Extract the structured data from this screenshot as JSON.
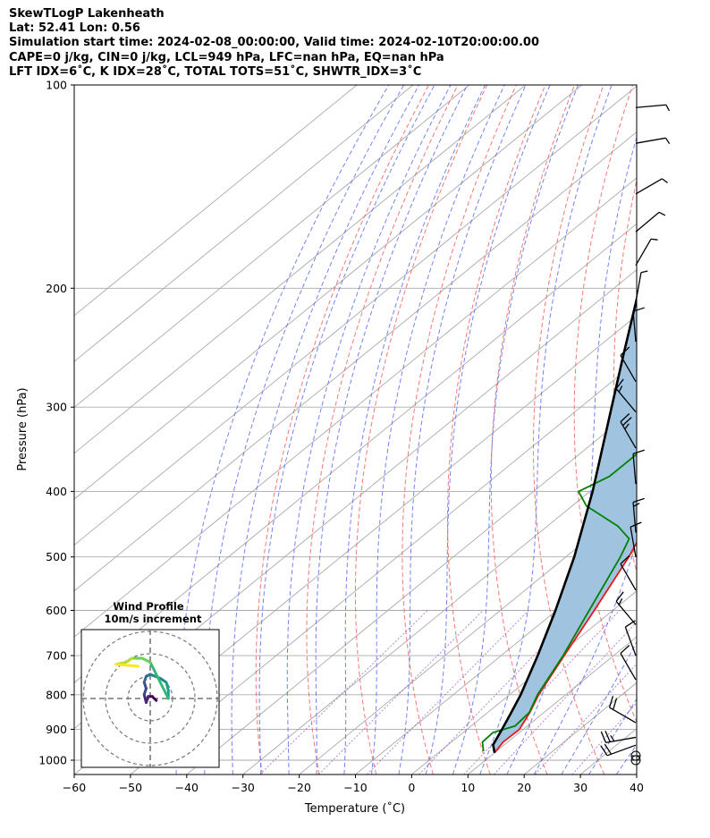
{
  "header": {
    "line1": "SkewTLogP Lakenheath",
    "line2": "Lat: 52.41   Lon: 0.56",
    "line3": "Simulation start time: 2024-02-08_00:00:00, Valid time: 2024-02-10T20:00:00.00",
    "line4": "CAPE=0 j/kg, CIN=0 j/kg, LCL=949 hPa, LFC=nan hPa, EQ=nan hPa",
    "line5": "LFT IDX=6˚C, K IDX=28˚C, TOTAL TOTS=51˚C, SHWTR_IDX=3˚C"
  },
  "hodograph": {
    "title": "Wind Profile",
    "subtitle": "10m/s increment"
  },
  "colors": {
    "temperature": "#e41a1c",
    "dewpoint": "#008000",
    "parcel": "#000000",
    "fill": "#a0c4e0",
    "dry_adiabat": "#f06060",
    "moist_adiabat": "#5a6ef0",
    "mixing_ratio": "#9040c0",
    "isotherm": "#aaaaaa"
  },
  "chart_data": {
    "type": "line",
    "title": "",
    "xlabel": "Temperature (˚C)",
    "ylabel": "Pressure (hPa)",
    "xlim": [
      -60,
      40
    ],
    "ylim": [
      1050,
      100
    ],
    "y_scale": "log",
    "grid": true,
    "x_ticks": [
      -60,
      -50,
      -40,
      -30,
      -20,
      -10,
      0,
      10,
      20,
      30,
      40
    ],
    "y_ticks": [
      100,
      200,
      300,
      400,
      500,
      600,
      700,
      800,
      900,
      1000
    ],
    "series": [
      {
        "key": "temperature",
        "pressure": [
          975,
          940,
          900,
          850,
          800,
          700,
          600,
          500,
          450,
          400,
          350,
          300,
          290,
          250,
          230,
          200,
          180,
          150,
          130,
          110,
          100
        ],
        "values": [
          10,
          9.2,
          9.3,
          7.5,
          5.2,
          1.2,
          -3.3,
          -8.8,
          -12.5,
          -16.2,
          -20.7,
          -28.5,
          -29.0,
          -27.6,
          -26.9,
          -27.5,
          -28.5,
          -31.0,
          -34.0,
          -38.5,
          -42.0
        ]
      },
      {
        "key": "dewpoint",
        "pressure": [
          970,
          940,
          910,
          890,
          850,
          800,
          700,
          600,
          500,
          470,
          450,
          420,
          400,
          380,
          350,
          330,
          300,
          270,
          250,
          230,
          210,
          200,
          180,
          150,
          130,
          110,
          100
        ],
        "values": [
          7.7,
          5.5,
          5.3,
          7.8,
          7.4,
          5.0,
          1.0,
          -4.2,
          -10.3,
          -12.7,
          -17.5,
          -27.5,
          -32.0,
          -29.8,
          -29.8,
          -31.0,
          -32.6,
          -33.2,
          -34.7,
          -35.0,
          -37.5,
          -38.0,
          -40.0,
          -43.0,
          -47.0,
          -50.5,
          -52.5
        ]
      },
      {
        "key": "parcel",
        "pressure": [
          975,
          949,
          900,
          850,
          800,
          700,
          600,
          500,
          400,
          300,
          250,
          200,
          150,
          100
        ],
        "values": [
          10,
          8.0,
          6.2,
          4.2,
          2.0,
          -3.5,
          -10.2,
          -18.5,
          -29.5,
          -44.5,
          -54.0,
          -65.5,
          -80.0,
          -97.0
        ]
      }
    ],
    "wind_barbs": [
      {
        "pressure": 1000,
        "speed_kt": 0
      },
      {
        "pressure": 985,
        "speed_kt": 0
      },
      {
        "pressure": 950,
        "speed_kt": 20,
        "dir": 250
      },
      {
        "pressure": 925,
        "speed_kt": 25,
        "dir": 260
      },
      {
        "pressure": 880,
        "speed_kt": 20,
        "dir": 300
      },
      {
        "pressure": 760,
        "speed_kt": 10,
        "dir": 330
      },
      {
        "pressure": 700,
        "speed_kt": 10,
        "dir": 340
      },
      {
        "pressure": 630,
        "speed_kt": 15,
        "dir": 320
      },
      {
        "pressure": 560,
        "speed_kt": 10,
        "dir": 330
      },
      {
        "pressure": 500,
        "speed_kt": 10,
        "dir": 350
      },
      {
        "pressure": 460,
        "speed_kt": 15,
        "dir": 355
      },
      {
        "pressure": 390,
        "speed_kt": 10,
        "dir": 355
      },
      {
        "pressure": 345,
        "speed_kt": 25,
        "dir": 330
      },
      {
        "pressure": 305,
        "speed_kt": 15,
        "dir": 320
      },
      {
        "pressure": 275,
        "speed_kt": 10,
        "dir": 330
      },
      {
        "pressure": 240,
        "speed_kt": 10,
        "dir": 355
      },
      {
        "pressure": 210,
        "speed_kt": 5,
        "dir": 10
      },
      {
        "pressure": 185,
        "speed_kt": 5,
        "dir": 30
      },
      {
        "pressure": 165,
        "speed_kt": 5,
        "dir": 50
      },
      {
        "pressure": 145,
        "speed_kt": 5,
        "dir": 60
      },
      {
        "pressure": 122,
        "speed_kt": 5,
        "dir": 80
      },
      {
        "pressure": 108,
        "speed_kt": 5,
        "dir": 85
      }
    ],
    "hodograph_points": [
      {
        "u": 1.5,
        "v": -0.5
      },
      {
        "u": 0.5,
        "v": 0.5
      },
      {
        "u": -0.5,
        "v": 0.5
      },
      {
        "u": -1,
        "v": -1
      },
      {
        "u": -1.5,
        "v": 1
      },
      {
        "u": -1,
        "v": 2.5
      },
      {
        "u": -1.5,
        "v": 4
      },
      {
        "u": -1,
        "v": 5.5
      },
      {
        "u": 0,
        "v": 6
      },
      {
        "u": 2.5,
        "v": 5
      },
      {
        "u": 4,
        "v": 4
      },
      {
        "u": 4.5,
        "v": 2
      },
      {
        "u": 4.5,
        "v": 0
      },
      {
        "u": 1,
        "v": 7
      },
      {
        "u": 0,
        "v": 9
      },
      {
        "u": -2,
        "v": 10
      },
      {
        "u": -4.5,
        "v": 10
      },
      {
        "u": -6,
        "v": 9
      },
      {
        "u": -8.5,
        "v": 8.5
      },
      {
        "u": -3,
        "v": 8
      }
    ]
  }
}
